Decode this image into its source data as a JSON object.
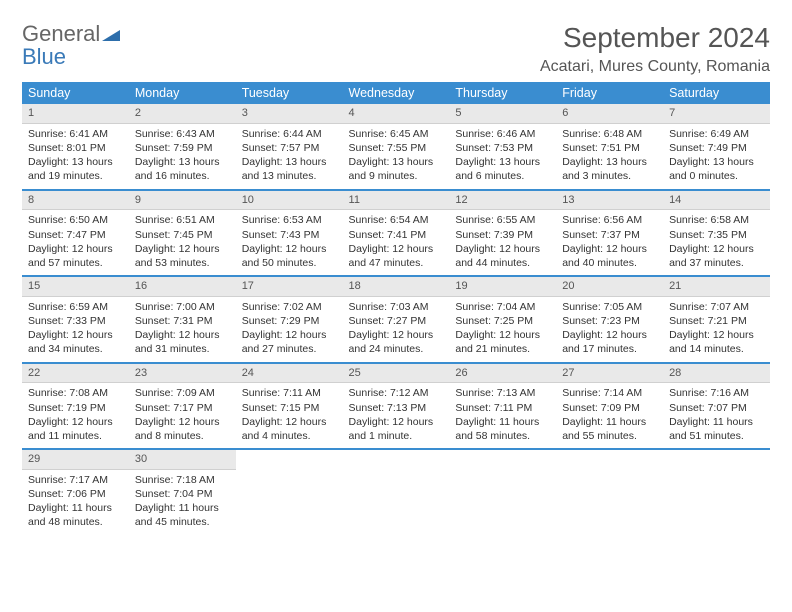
{
  "logo": {
    "text1": "General",
    "text2": "Blue"
  },
  "title": "September 2024",
  "location": "Acatari, Mures County, Romania",
  "colors": {
    "header_bg": "#3a8dd0",
    "header_text": "#ffffff",
    "daynum_bg": "#e9e9e9",
    "row_divider": "#3a8dd0",
    "text": "#333333",
    "title_text": "#555555"
  },
  "fonts": {
    "title_size_pt": 21,
    "location_size_pt": 12,
    "dayheader_size_pt": 9.5,
    "cell_size_pt": 8
  },
  "day_headers": [
    "Sunday",
    "Monday",
    "Tuesday",
    "Wednesday",
    "Thursday",
    "Friday",
    "Saturday"
  ],
  "weeks": [
    [
      {
        "n": "1",
        "sr": "6:41 AM",
        "ss": "8:01 PM",
        "dl": "13 hours and 19 minutes."
      },
      {
        "n": "2",
        "sr": "6:43 AM",
        "ss": "7:59 PM",
        "dl": "13 hours and 16 minutes."
      },
      {
        "n": "3",
        "sr": "6:44 AM",
        "ss": "7:57 PM",
        "dl": "13 hours and 13 minutes."
      },
      {
        "n": "4",
        "sr": "6:45 AM",
        "ss": "7:55 PM",
        "dl": "13 hours and 9 minutes."
      },
      {
        "n": "5",
        "sr": "6:46 AM",
        "ss": "7:53 PM",
        "dl": "13 hours and 6 minutes."
      },
      {
        "n": "6",
        "sr": "6:48 AM",
        "ss": "7:51 PM",
        "dl": "13 hours and 3 minutes."
      },
      {
        "n": "7",
        "sr": "6:49 AM",
        "ss": "7:49 PM",
        "dl": "13 hours and 0 minutes."
      }
    ],
    [
      {
        "n": "8",
        "sr": "6:50 AM",
        "ss": "7:47 PM",
        "dl": "12 hours and 57 minutes."
      },
      {
        "n": "9",
        "sr": "6:51 AM",
        "ss": "7:45 PM",
        "dl": "12 hours and 53 minutes."
      },
      {
        "n": "10",
        "sr": "6:53 AM",
        "ss": "7:43 PM",
        "dl": "12 hours and 50 minutes."
      },
      {
        "n": "11",
        "sr": "6:54 AM",
        "ss": "7:41 PM",
        "dl": "12 hours and 47 minutes."
      },
      {
        "n": "12",
        "sr": "6:55 AM",
        "ss": "7:39 PM",
        "dl": "12 hours and 44 minutes."
      },
      {
        "n": "13",
        "sr": "6:56 AM",
        "ss": "7:37 PM",
        "dl": "12 hours and 40 minutes."
      },
      {
        "n": "14",
        "sr": "6:58 AM",
        "ss": "7:35 PM",
        "dl": "12 hours and 37 minutes."
      }
    ],
    [
      {
        "n": "15",
        "sr": "6:59 AM",
        "ss": "7:33 PM",
        "dl": "12 hours and 34 minutes."
      },
      {
        "n": "16",
        "sr": "7:00 AM",
        "ss": "7:31 PM",
        "dl": "12 hours and 31 minutes."
      },
      {
        "n": "17",
        "sr": "7:02 AM",
        "ss": "7:29 PM",
        "dl": "12 hours and 27 minutes."
      },
      {
        "n": "18",
        "sr": "7:03 AM",
        "ss": "7:27 PM",
        "dl": "12 hours and 24 minutes."
      },
      {
        "n": "19",
        "sr": "7:04 AM",
        "ss": "7:25 PM",
        "dl": "12 hours and 21 minutes."
      },
      {
        "n": "20",
        "sr": "7:05 AM",
        "ss": "7:23 PM",
        "dl": "12 hours and 17 minutes."
      },
      {
        "n": "21",
        "sr": "7:07 AM",
        "ss": "7:21 PM",
        "dl": "12 hours and 14 minutes."
      }
    ],
    [
      {
        "n": "22",
        "sr": "7:08 AM",
        "ss": "7:19 PM",
        "dl": "12 hours and 11 minutes."
      },
      {
        "n": "23",
        "sr": "7:09 AM",
        "ss": "7:17 PM",
        "dl": "12 hours and 8 minutes."
      },
      {
        "n": "24",
        "sr": "7:11 AM",
        "ss": "7:15 PM",
        "dl": "12 hours and 4 minutes."
      },
      {
        "n": "25",
        "sr": "7:12 AM",
        "ss": "7:13 PM",
        "dl": "12 hours and 1 minute."
      },
      {
        "n": "26",
        "sr": "7:13 AM",
        "ss": "7:11 PM",
        "dl": "11 hours and 58 minutes."
      },
      {
        "n": "27",
        "sr": "7:14 AM",
        "ss": "7:09 PM",
        "dl": "11 hours and 55 minutes."
      },
      {
        "n": "28",
        "sr": "7:16 AM",
        "ss": "7:07 PM",
        "dl": "11 hours and 51 minutes."
      }
    ],
    [
      {
        "n": "29",
        "sr": "7:17 AM",
        "ss": "7:06 PM",
        "dl": "11 hours and 48 minutes."
      },
      {
        "n": "30",
        "sr": "7:18 AM",
        "ss": "7:04 PM",
        "dl": "11 hours and 45 minutes."
      },
      null,
      null,
      null,
      null,
      null
    ]
  ],
  "labels": {
    "sunrise_prefix": "Sunrise: ",
    "sunset_prefix": "Sunset: ",
    "daylight_prefix": "Daylight: "
  }
}
